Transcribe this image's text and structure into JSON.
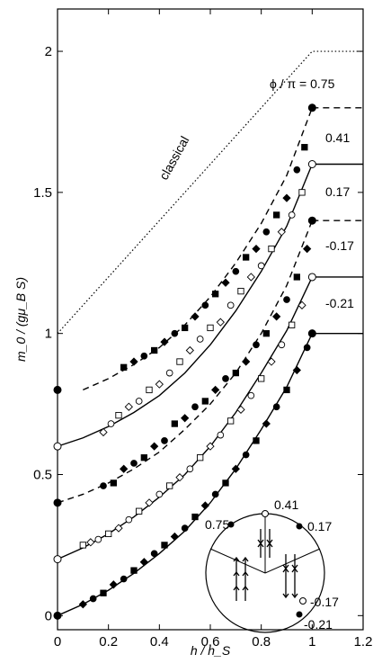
{
  "chart_data": {
    "type": "scatter",
    "xlabel": "h / h_S",
    "ylabel": "m_0 / (gμ_B S)",
    "xlim": [
      0,
      1.2
    ],
    "ylim": [
      -0.05,
      2.15
    ],
    "x_ticks": [
      "0",
      "0.2",
      "0.4",
      "0.6",
      "0.8",
      "1",
      "1.2"
    ],
    "y_ticks": [
      "0",
      "0.5",
      "1",
      "1.5",
      "2"
    ],
    "y_tick_values": [
      0,
      0.5,
      1,
      1.5,
      2
    ],
    "x_tick_values": [
      0,
      0.2,
      0.4,
      0.6,
      0.8,
      1.0,
      1.2
    ],
    "y_offsets_note_free": true,
    "annotations": {
      "classical": "classical",
      "phi_prefix": "ϕ / π = 0.75",
      "l041": "0.41",
      "l017": "0.17",
      "lm017": "-0.17",
      "lm021": "-0.21"
    },
    "inset_labels": {
      "a075": "0.75",
      "a041": "0.41",
      "a017": "0.17",
      "am017": "-0.17",
      "am021": "-0.21"
    },
    "series": [
      {
        "name": "classical",
        "style": "dotted",
        "x": [
          0,
          1.0,
          1.2
        ],
        "y": [
          1.0,
          2.0,
          2.0
        ]
      },
      {
        "name": "0.75",
        "style": "dashed",
        "offset": 0.8,
        "curve_x": [
          0.1,
          0.2,
          0.3,
          0.4,
          0.5,
          0.6,
          0.7,
          0.8,
          0.9,
          1.0
        ],
        "curve_y": [
          0.0,
          0.04,
          0.09,
          0.15,
          0.23,
          0.33,
          0.45,
          0.59,
          0.76,
          1.0
        ],
        "points_x": [
          0.26,
          0.3,
          0.34,
          0.38,
          0.42,
          0.46,
          0.5,
          0.54,
          0.58,
          0.62,
          0.66,
          0.7,
          0.74,
          0.78,
          0.82,
          0.86,
          0.9,
          0.94,
          0.97
        ],
        "points_y": [
          0.08,
          0.1,
          0.12,
          0.14,
          0.17,
          0.2,
          0.22,
          0.26,
          0.3,
          0.34,
          0.38,
          0.42,
          0.47,
          0.5,
          0.56,
          0.62,
          0.68,
          0.78,
          0.86
        ]
      },
      {
        "name": "0.41",
        "style": "solid",
        "offset": 0.6,
        "curve_x": [
          0,
          0.1,
          0.2,
          0.3,
          0.4,
          0.5,
          0.6,
          0.7,
          0.8,
          0.9,
          1.0
        ],
        "curve_y": [
          0.0,
          0.03,
          0.07,
          0.12,
          0.18,
          0.26,
          0.36,
          0.48,
          0.62,
          0.78,
          1.0
        ],
        "points_x": [
          0.18,
          0.21,
          0.24,
          0.28,
          0.32,
          0.36,
          0.4,
          0.44,
          0.48,
          0.52,
          0.56,
          0.6,
          0.64,
          0.68,
          0.72,
          0.76,
          0.8,
          0.84,
          0.88,
          0.92,
          0.96
        ],
        "points_y": [
          0.05,
          0.08,
          0.11,
          0.14,
          0.16,
          0.2,
          0.22,
          0.26,
          0.3,
          0.34,
          0.38,
          0.42,
          0.44,
          0.5,
          0.55,
          0.6,
          0.64,
          0.7,
          0.76,
          0.82,
          0.9
        ]
      },
      {
        "name": "0.17",
        "style": "dashed",
        "offset": 0.4,
        "curve_x": [
          0,
          0.1,
          0.2,
          0.3,
          0.4,
          0.5,
          0.6,
          0.7,
          0.8,
          0.9,
          1.0
        ],
        "curve_y": [
          0.0,
          0.03,
          0.07,
          0.12,
          0.18,
          0.26,
          0.35,
          0.46,
          0.6,
          0.77,
          1.0
        ],
        "points_x": [
          0.18,
          0.22,
          0.26,
          0.3,
          0.34,
          0.38,
          0.42,
          0.46,
          0.5,
          0.54,
          0.58,
          0.62,
          0.66,
          0.7,
          0.74,
          0.78,
          0.82,
          0.86,
          0.9,
          0.94,
          0.98
        ],
        "points_y": [
          0.06,
          0.07,
          0.12,
          0.14,
          0.16,
          0.2,
          0.22,
          0.28,
          0.3,
          0.34,
          0.36,
          0.4,
          0.44,
          0.46,
          0.5,
          0.56,
          0.6,
          0.66,
          0.72,
          0.8,
          0.9
        ]
      },
      {
        "name": "-0.17",
        "style": "solid",
        "offset": 0.2,
        "curve_x": [
          0,
          0.1,
          0.2,
          0.3,
          0.4,
          0.5,
          0.6,
          0.7,
          0.8,
          0.9,
          1.0
        ],
        "curve_y": [
          0.0,
          0.04,
          0.09,
          0.15,
          0.22,
          0.3,
          0.4,
          0.52,
          0.66,
          0.81,
          1.0
        ],
        "points_x": [
          0.1,
          0.13,
          0.16,
          0.2,
          0.24,
          0.28,
          0.32,
          0.36,
          0.4,
          0.44,
          0.48,
          0.52,
          0.56,
          0.6,
          0.64,
          0.68,
          0.72,
          0.76,
          0.8,
          0.84,
          0.88,
          0.92,
          0.96
        ],
        "points_y": [
          0.05,
          0.06,
          0.07,
          0.09,
          0.11,
          0.14,
          0.17,
          0.2,
          0.23,
          0.26,
          0.29,
          0.32,
          0.36,
          0.4,
          0.44,
          0.49,
          0.53,
          0.58,
          0.64,
          0.7,
          0.76,
          0.83,
          0.9
        ]
      },
      {
        "name": "-0.21",
        "style": "solid",
        "offset": 0.0,
        "curve_x": [
          0,
          0.1,
          0.2,
          0.3,
          0.4,
          0.5,
          0.6,
          0.7,
          0.8,
          0.9,
          1.0
        ],
        "curve_y": [
          0.0,
          0.04,
          0.09,
          0.15,
          0.22,
          0.3,
          0.4,
          0.52,
          0.66,
          0.81,
          1.0
        ],
        "points_x": [
          0.1,
          0.14,
          0.18,
          0.22,
          0.26,
          0.3,
          0.34,
          0.38,
          0.42,
          0.46,
          0.5,
          0.54,
          0.58,
          0.62,
          0.66,
          0.7,
          0.74,
          0.78,
          0.82,
          0.86,
          0.9,
          0.94,
          0.98
        ],
        "points_y": [
          0.04,
          0.06,
          0.08,
          0.11,
          0.13,
          0.16,
          0.19,
          0.22,
          0.25,
          0.28,
          0.31,
          0.35,
          0.39,
          0.43,
          0.47,
          0.52,
          0.57,
          0.62,
          0.68,
          0.74,
          0.8,
          0.87,
          0.95
        ]
      }
    ]
  }
}
